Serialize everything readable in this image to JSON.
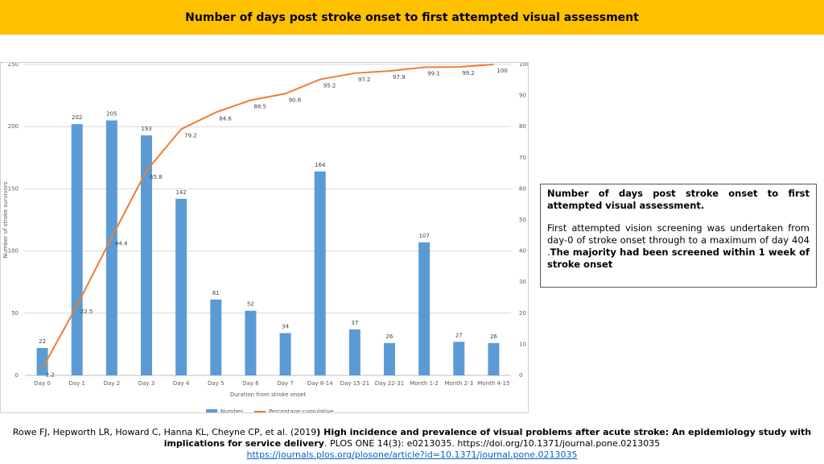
{
  "header": {
    "title": "Number of days post stroke onset to first attempted visual assessment"
  },
  "chart_data": {
    "type": "bar",
    "categories": [
      "Day 0",
      "Day 1",
      "Day 2",
      "Day 3",
      "Day 4",
      "Day 5",
      "Day 6",
      "Day 7",
      "Day 8-14",
      "Day 15-21",
      "Day 22-31",
      "Month 1-2",
      "Month 2-3",
      "Month 4-15"
    ],
    "series": [
      {
        "name": "Number",
        "color": "#5b9bd5",
        "values": [
          22,
          202,
          205,
          193,
          142,
          61,
          52,
          34,
          164,
          37,
          26,
          107,
          27,
          26
        ]
      },
      {
        "name": "Percentage cumulative",
        "type": "line",
        "axis": "y2",
        "color": "#ed7d31",
        "values": [
          2.2,
          22.5,
          44.4,
          65.8,
          79.2,
          84.6,
          88.5,
          90.6,
          95.2,
          97.2,
          97.9,
          99.1,
          99.2,
          100
        ]
      }
    ],
    "y_label": "Number of stroke survivors",
    "x_label": "Duration from stroke onset",
    "ylim": [
      0,
      250
    ],
    "yticks": [
      0,
      50,
      100,
      150,
      200,
      250
    ],
    "y2lim": [
      0,
      100
    ],
    "y2ticks": [
      0,
      10,
      20,
      30,
      40,
      50,
      60,
      70,
      80,
      90,
      100
    ],
    "grid": true,
    "legend": "bottom"
  },
  "note": {
    "title": "Number of days post stroke onset to first attempted visual assessment.",
    "text": "First attempted vision screening was undertaken from day-0 of stroke onset through to a maximum of day 404 .",
    "bold_text": "The majority had been screened within 1 week of stroke onset"
  },
  "citation": {
    "authors": "Rowe FJ, Hepworth LR, Howard C, Hanna KL, Cheyne CP, et al. (2019",
    "title": ") High incidence and prevalence of visual problems after acute stroke: An epidemiology study with implications for service delivery",
    "source": ". PLOS ONE 14(3): e0213035. https://doi.org/10.1371/journal.pone.0213035",
    "link": "https://journals.plos.org/plosone/article?id=10.1371/journal.pone.0213035"
  }
}
